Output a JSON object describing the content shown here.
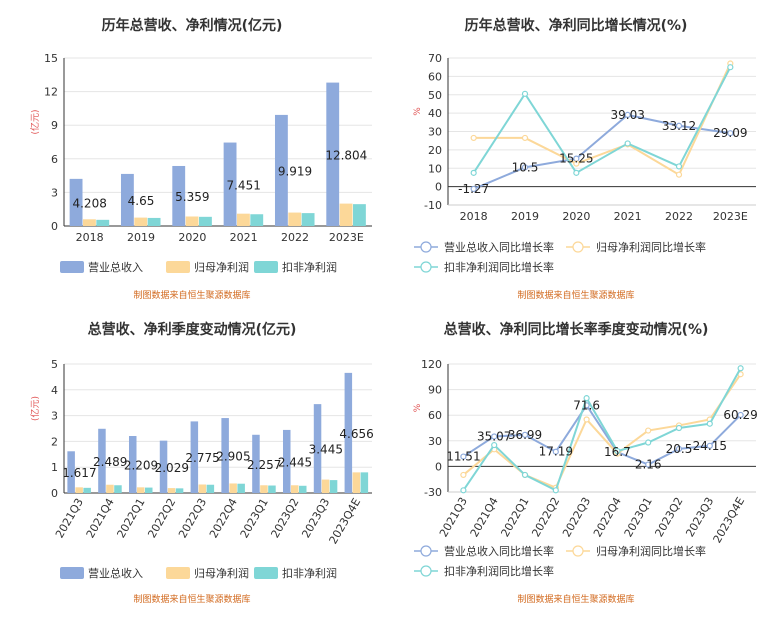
{
  "panels": [
    {
      "title": "历年总营收、净利情况(亿元)",
      "source": "制图数据来自恒生聚源数据库",
      "chart_data": {
        "type": "bar",
        "ylabel": "(亿元)",
        "ylim": [
          0,
          15
        ],
        "yticks": [
          0,
          3,
          6,
          9,
          12,
          15
        ],
        "grid": true,
        "legend_position": "bottom",
        "categories": [
          "2018",
          "2019",
          "2020",
          "2021",
          "2022",
          "2023E"
        ],
        "series": [
          {
            "name": "营业总收入",
            "color": "#8eaadc",
            "values": [
              4.208,
              4.65,
              5.359,
              7.451,
              9.919,
              12.804
            ],
            "labels": [
              "4.208",
              "4.65",
              "5.359",
              "7.451",
              "9.919",
              "12.804"
            ]
          },
          {
            "name": "归母净利润",
            "color": "#fcd899",
            "values": [
              0.6,
              0.75,
              0.85,
              1.1,
              1.2,
              2.0
            ]
          },
          {
            "name": "扣非净利润",
            "color": "#7fd6d6",
            "values": [
              0.55,
              0.72,
              0.82,
              1.05,
              1.15,
              1.95
            ]
          }
        ]
      }
    },
    {
      "title": "历年总营收、净利同比增长情况(%)",
      "source": "制图数据来自恒生聚源数据库",
      "chart_data": {
        "type": "line",
        "ylabel": "%",
        "ylim": [
          -10,
          70
        ],
        "yticks": [
          -10,
          0,
          10,
          20,
          30,
          40,
          50,
          60,
          70
        ],
        "grid": true,
        "legend_position": "bottom",
        "categories": [
          "2018",
          "2019",
          "2020",
          "2021",
          "2022",
          "2023E"
        ],
        "series": [
          {
            "name": "营业总收入同比增长率",
            "color": "#8eaadc",
            "values": [
              -1.27,
              10.5,
              15.25,
              39.03,
              33.12,
              29.09
            ],
            "labels": [
              "-1.27",
              "10.5",
              "15.25",
              "39.03",
              "33.12",
              "29.09"
            ]
          },
          {
            "name": "归母净利润同比增长率",
            "color": "#fcd899",
            "values": [
              26.5,
              26.5,
              12.5,
              23.0,
              6.5,
              67.0
            ]
          },
          {
            "name": "扣非净利润同比增长率",
            "color": "#7fd6d6",
            "values": [
              7.5,
              50.5,
              7.5,
              23.5,
              11.0,
              65.0
            ]
          }
        ]
      }
    },
    {
      "title": "总营收、净利季度变动情况(亿元)",
      "source": "制图数据来自恒生聚源数据库",
      "chart_data": {
        "type": "bar",
        "ylabel": "(亿元)",
        "ylim": [
          0,
          5
        ],
        "yticks": [
          0,
          1,
          2,
          3,
          4,
          5
        ],
        "grid": true,
        "legend_position": "bottom",
        "categories": [
          "2021Q3",
          "2021Q4",
          "2022Q1",
          "2022Q2",
          "2022Q3",
          "2022Q4",
          "2023Q1",
          "2023Q2",
          "2023Q3",
          "2023Q4E"
        ],
        "series": [
          {
            "name": "营业总收入",
            "color": "#8eaadc",
            "values": [
              1.617,
              2.489,
              2.209,
              2.029,
              2.775,
              2.905,
              2.257,
              2.445,
              3.445,
              4.656
            ],
            "labels": [
              "1.617",
              "2.489",
              "2.209",
              "2.029",
              "2.775",
              "2.905",
              "2.257",
              "2.445",
              "3.445",
              "4.656"
            ]
          },
          {
            "name": "归母净利润",
            "color": "#fcd899",
            "values": [
              0.22,
              0.32,
              0.22,
              0.19,
              0.33,
              0.37,
              0.3,
              0.3,
              0.52,
              0.8
            ]
          },
          {
            "name": "扣非净利润",
            "color": "#7fd6d6",
            "values": [
              0.2,
              0.3,
              0.21,
              0.18,
              0.32,
              0.36,
              0.29,
              0.28,
              0.5,
              0.8
            ]
          }
        ]
      }
    },
    {
      "title": "总营收、净利同比增长率季度变动情况(%)",
      "source": "制图数据来自恒生聚源数据库",
      "chart_data": {
        "type": "line",
        "ylabel": "%",
        "ylim": [
          -30,
          120
        ],
        "yticks": [
          -30,
          0,
          30,
          60,
          90,
          120
        ],
        "grid": true,
        "legend_position": "bottom",
        "categories": [
          "2021Q3",
          "2021Q4",
          "2022Q1",
          "2022Q2",
          "2022Q3",
          "2022Q4",
          "2023Q1",
          "2023Q2",
          "2023Q3",
          "2023Q4E"
        ],
        "series": [
          {
            "name": "营业总收入同比增长率",
            "color": "#8eaadc",
            "values": [
              11.51,
              35.07,
              36.99,
              17.19,
              71.6,
              16.7,
              2.16,
              20.5,
              24.15,
              60.29
            ],
            "labels": [
              "11.51",
              "35.07",
              "36.99",
              "17.19",
              "71.6",
              "16.7",
              "2.16",
              "20.5",
              "24.15",
              "60.29"
            ]
          },
          {
            "name": "归母净利润同比增长率",
            "color": "#fcd899",
            "values": [
              -10,
              20,
              -10,
              -25,
              55,
              15,
              42,
              48,
              55,
              108
            ]
          },
          {
            "name": "扣非净利润同比增长率",
            "color": "#7fd6d6",
            "values": [
              -28,
              25,
              -10,
              -28,
              80,
              18,
              28,
              45,
              50,
              115
            ]
          }
        ]
      }
    }
  ]
}
